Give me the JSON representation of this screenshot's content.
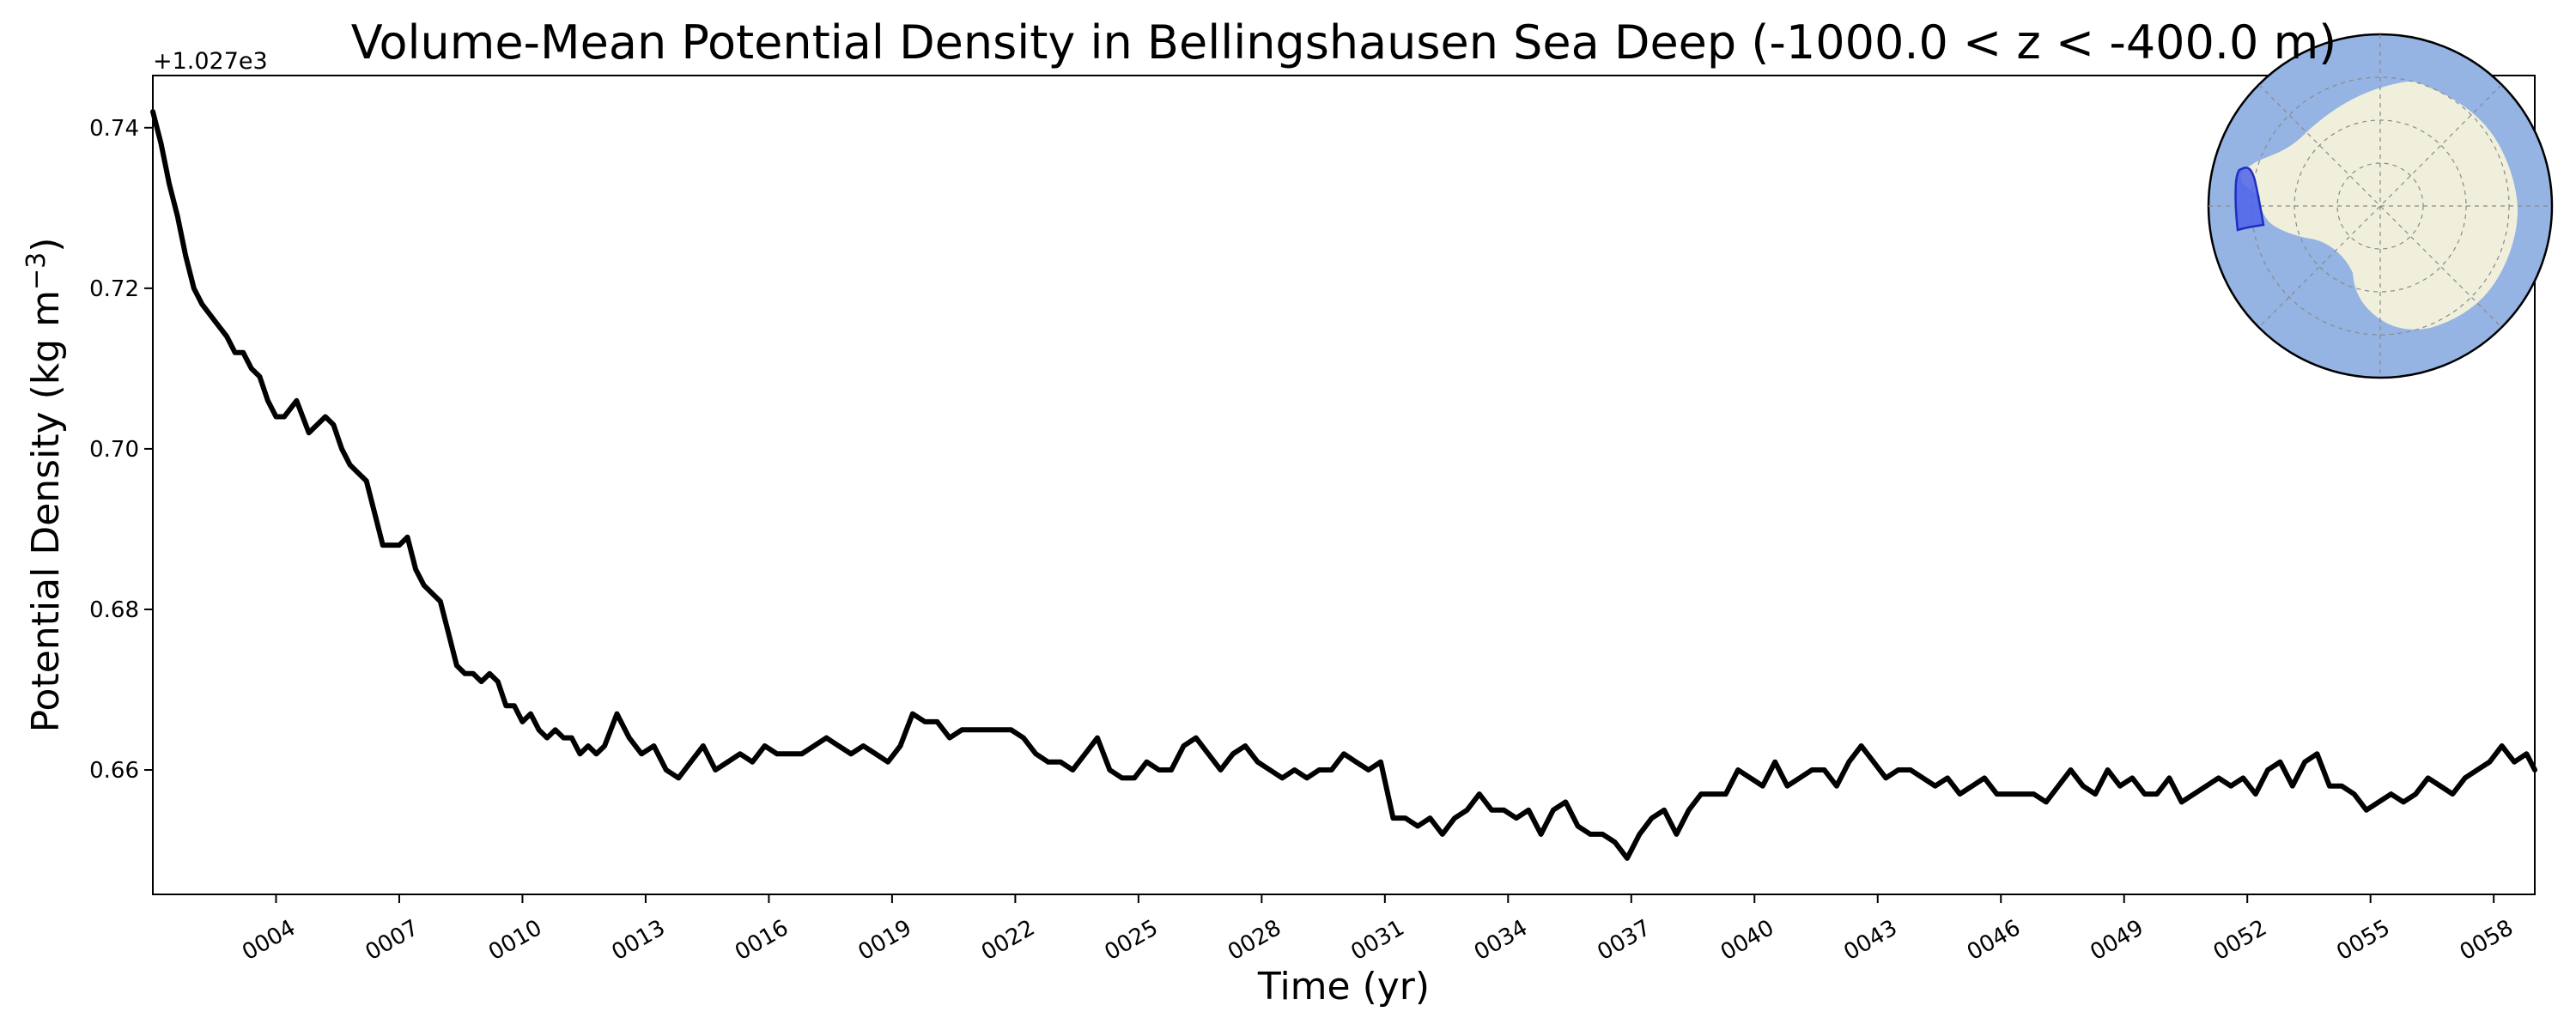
{
  "chart_data": {
    "type": "line",
    "title": "Volume-Mean Potential Density in Bellingshausen Sea Deep (-1000.0 < z < -400.0 m)",
    "xlabel": "Time (yr)",
    "ylabel": "Potential Density (kg m",
    "ylabel_superscript": "−3",
    "ylabel_suffix": ")",
    "y_offset_label": "+1.027e3",
    "xlim": [
      1,
      59
    ],
    "ylim": [
      0.6445,
      0.7465
    ],
    "x_ticks": [
      4,
      7,
      10,
      13,
      16,
      19,
      22,
      25,
      28,
      31,
      34,
      37,
      40,
      43,
      46,
      49,
      52,
      55,
      58
    ],
    "x_tick_labels": [
      "0004",
      "0007",
      "0010",
      "0013",
      "0016",
      "0019",
      "0022",
      "0025",
      "0028",
      "0031",
      "0034",
      "0037",
      "0040",
      "0043",
      "0046",
      "0049",
      "0052",
      "0055",
      "0058"
    ],
    "y_ticks": [
      0.66,
      0.68,
      0.7,
      0.72,
      0.74
    ],
    "y_tick_labels": [
      "0.66",
      "0.68",
      "0.70",
      "0.72",
      "0.74"
    ],
    "grid": false,
    "legend": "none",
    "line_color": "#000000",
    "inset_map": {
      "ocean_color": "#95b3e3",
      "land_color": "#efefdc",
      "region_color": "#4e63ea"
    },
    "series": [
      {
        "x": [
          1.0,
          1.2,
          1.4,
          1.6,
          1.8,
          2.0,
          2.2,
          2.5,
          2.8,
          3.0,
          3.2,
          3.4,
          3.6,
          3.8,
          4.0,
          4.2,
          4.5,
          4.8,
          5.0,
          5.2,
          5.4,
          5.6,
          5.8,
          6.0,
          6.2,
          6.4,
          6.6,
          6.8,
          7.0,
          7.2,
          7.4,
          7.6,
          7.8,
          8.0,
          8.2,
          8.4,
          8.6,
          8.8,
          9.0,
          9.2,
          9.4,
          9.6,
          9.8,
          10.0,
          10.2,
          10.4,
          10.6,
          10.8,
          11.0,
          11.2,
          11.4,
          11.6,
          11.8,
          12.0,
          12.3,
          12.6,
          12.9,
          13.2,
          13.5,
          13.8,
          14.1,
          14.4,
          14.7,
          15.0,
          15.3,
          15.6,
          15.9,
          16.2,
          16.5,
          16.8,
          17.1,
          17.4,
          17.7,
          18.0,
          18.3,
          18.6,
          18.9,
          19.2,
          19.5,
          19.8,
          20.1,
          20.4,
          20.7,
          21.0,
          21.3,
          21.6,
          21.9,
          22.2,
          22.5,
          22.8,
          23.1,
          23.4,
          23.7,
          24.0,
          24.3,
          24.6,
          24.9,
          25.2,
          25.5,
          25.8,
          26.1,
          26.4,
          26.7,
          27.0,
          27.3,
          27.6,
          27.9,
          28.2,
          28.5,
          28.8,
          29.1,
          29.4,
          29.7,
          30.0,
          30.3,
          30.6,
          30.9,
          31.2,
          31.5,
          31.8,
          32.1,
          32.4,
          32.7,
          33.0,
          33.3,
          33.6,
          33.9,
          34.2,
          34.5,
          34.8,
          35.1,
          35.4,
          35.7,
          36.0,
          36.3,
          36.6,
          36.9,
          37.2,
          37.5,
          37.8,
          38.1,
          38.4,
          38.7,
          39.0,
          39.3,
          39.6,
          39.9,
          40.2,
          40.5,
          40.8,
          41.1,
          41.4,
          41.7,
          42.0,
          42.3,
          42.6,
          42.9,
          43.2,
          43.5,
          43.8,
          44.1,
          44.4,
          44.7,
          45.0,
          45.3,
          45.6,
          45.9,
          46.2,
          46.5,
          46.8,
          47.1,
          47.4,
          47.7,
          48.0,
          48.3,
          48.6,
          48.9,
          49.2,
          49.5,
          49.8,
          50.1,
          50.4,
          50.7,
          51.0,
          51.3,
          51.6,
          51.9,
          52.2,
          52.5,
          52.8,
          53.1,
          53.4,
          53.7,
          54.0,
          54.3,
          54.6,
          54.9,
          55.2,
          55.5,
          55.8,
          56.1,
          56.4,
          56.7,
          57.0,
          57.3,
          57.6,
          57.9,
          58.2,
          58.5,
          58.8,
          59.0
        ],
        "values": [
          0.742,
          0.738,
          0.733,
          0.729,
          0.724,
          0.72,
          0.718,
          0.716,
          0.714,
          0.712,
          0.712,
          0.71,
          0.709,
          0.706,
          0.704,
          0.704,
          0.706,
          0.702,
          0.703,
          0.704,
          0.703,
          0.7,
          0.698,
          0.697,
          0.696,
          0.692,
          0.688,
          0.688,
          0.688,
          0.689,
          0.685,
          0.683,
          0.682,
          0.681,
          0.677,
          0.673,
          0.672,
          0.672,
          0.671,
          0.672,
          0.671,
          0.668,
          0.668,
          0.666,
          0.667,
          0.665,
          0.664,
          0.665,
          0.664,
          0.664,
          0.662,
          0.663,
          0.662,
          0.663,
          0.667,
          0.664,
          0.662,
          0.663,
          0.66,
          0.659,
          0.661,
          0.663,
          0.66,
          0.661,
          0.662,
          0.661,
          0.663,
          0.662,
          0.662,
          0.662,
          0.663,
          0.664,
          0.663,
          0.662,
          0.663,
          0.662,
          0.661,
          0.663,
          0.667,
          0.666,
          0.666,
          0.664,
          0.665,
          0.665,
          0.665,
          0.665,
          0.665,
          0.664,
          0.662,
          0.661,
          0.661,
          0.66,
          0.662,
          0.664,
          0.66,
          0.659,
          0.659,
          0.661,
          0.66,
          0.66,
          0.663,
          0.664,
          0.662,
          0.66,
          0.662,
          0.663,
          0.661,
          0.66,
          0.659,
          0.66,
          0.659,
          0.66,
          0.66,
          0.662,
          0.661,
          0.66,
          0.661,
          0.654,
          0.654,
          0.653,
          0.654,
          0.652,
          0.654,
          0.655,
          0.657,
          0.655,
          0.655,
          0.654,
          0.655,
          0.652,
          0.655,
          0.656,
          0.653,
          0.652,
          0.652,
          0.651,
          0.649,
          0.652,
          0.654,
          0.655,
          0.652,
          0.655,
          0.657,
          0.657,
          0.657,
          0.66,
          0.659,
          0.658,
          0.661,
          0.658,
          0.659,
          0.66,
          0.66,
          0.658,
          0.661,
          0.663,
          0.661,
          0.659,
          0.66,
          0.66,
          0.659,
          0.658,
          0.659,
          0.657,
          0.658,
          0.659,
          0.657,
          0.657,
          0.657,
          0.657,
          0.656,
          0.658,
          0.66,
          0.658,
          0.657,
          0.66,
          0.658,
          0.659,
          0.657,
          0.657,
          0.659,
          0.656,
          0.657,
          0.658,
          0.659,
          0.658,
          0.659,
          0.657,
          0.66,
          0.661,
          0.658,
          0.661,
          0.662,
          0.658,
          0.658,
          0.657,
          0.655,
          0.656,
          0.657,
          0.656,
          0.657,
          0.659,
          0.658,
          0.657,
          0.659,
          0.66,
          0.661,
          0.663,
          0.661,
          0.662,
          0.66
        ]
      }
    ]
  }
}
